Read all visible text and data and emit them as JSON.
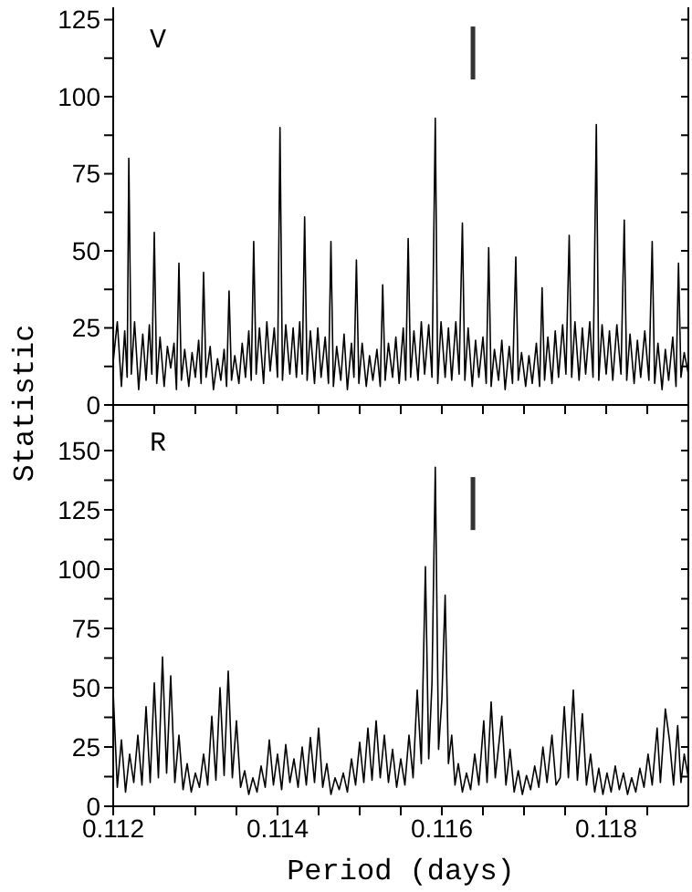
{
  "chart_data": [
    {
      "type": "line",
      "title": "V",
      "ylabel": "Statistic",
      "tick_labels": "y",
      "xlim": [
        0.112,
        0.119
      ],
      "ylim": [
        0,
        129
      ],
      "xticks": [
        0.112,
        {
          "value": 0.1125,
          "label": null
        },
        {
          "value": 0.113,
          "label": null
        },
        {
          "value": 0.1135,
          "label": null
        },
        {
          "value": 0.114,
          "label": null
        },
        {
          "value": 0.1145,
          "label": null
        },
        {
          "value": 0.115,
          "label": null
        },
        {
          "value": 0.1155,
          "label": null
        },
        {
          "value": 0.116,
          "label": null
        },
        {
          "value": 0.1165,
          "label": null
        },
        {
          "value": 0.117,
          "label": null
        },
        {
          "value": 0.1175,
          "label": null
        },
        {
          "value": 0.118,
          "label": null
        },
        {
          "value": 0.1185,
          "label": null
        }
      ],
      "yticks": [
        0,
        {
          "value": 12.5,
          "label": null
        },
        25,
        {
          "value": 37.5,
          "label": null
        },
        50,
        {
          "value": 62.5,
          "label": null
        },
        75,
        {
          "value": 87.5,
          "label": null
        },
        100,
        {
          "value": 112.5,
          "label": null
        },
        125
      ],
      "annotations": [
        "|"
      ],
      "x": [
        0.112,
        0.11205,
        0.1121,
        0.11214,
        0.11217,
        0.11219,
        0.11222,
        0.11226,
        0.11231,
        0.11236,
        0.1124,
        0.11244,
        0.11247,
        0.1125,
        0.11253,
        0.11257,
        0.11262,
        0.11266,
        0.1127,
        0.11274,
        0.11277,
        0.1128,
        0.11283,
        0.11287,
        0.11292,
        0.11296,
        0.113,
        0.11304,
        0.11307,
        0.1131,
        0.11313,
        0.11318,
        0.11322,
        0.11327,
        0.11331,
        0.11335,
        0.11338,
        0.11341,
        0.11344,
        0.11348,
        0.11353,
        0.11357,
        0.11361,
        0.11365,
        0.11368,
        0.11371,
        0.11374,
        0.11378,
        0.11383,
        0.11387,
        0.11391,
        0.11396,
        0.114,
        0.11403,
        0.11406,
        0.1141,
        0.11415,
        0.11419,
        0.11423,
        0.11427,
        0.1143,
        0.11433,
        0.11436,
        0.1144,
        0.11445,
        0.11449,
        0.11453,
        0.11458,
        0.11462,
        0.11465,
        0.11468,
        0.11472,
        0.11477,
        0.11481,
        0.11485,
        0.1149,
        0.11493,
        0.11496,
        0.11499,
        0.11503,
        0.11508,
        0.11512,
        0.11516,
        0.11521,
        0.11525,
        0.11528,
        0.11531,
        0.11535,
        0.1154,
        0.11544,
        0.11548,
        0.11553,
        0.11556,
        0.11559,
        0.11562,
        0.11566,
        0.11571,
        0.11575,
        0.11579,
        0.11584,
        0.11588,
        0.11592,
        0.11595,
        0.11599,
        0.11604,
        0.11608,
        0.11612,
        0.11617,
        0.11621,
        0.11625,
        0.11628,
        0.11632,
        0.11637,
        0.11641,
        0.11645,
        0.1165,
        0.11654,
        0.11657,
        0.1166,
        0.11664,
        0.11669,
        0.11673,
        0.11677,
        0.11682,
        0.11686,
        0.1169,
        0.11693,
        0.11697,
        0.11702,
        0.11706,
        0.1171,
        0.11715,
        0.11719,
        0.11722,
        0.11725,
        0.11729,
        0.11734,
        0.11738,
        0.11742,
        0.11747,
        0.11751,
        0.11755,
        0.11758,
        0.11762,
        0.11767,
        0.11771,
        0.11775,
        0.1178,
        0.11784,
        0.11788,
        0.11791,
        0.11795,
        0.118,
        0.11804,
        0.11808,
        0.11813,
        0.11818,
        0.11822,
        0.11825,
        0.11829,
        0.11834,
        0.11838,
        0.11842,
        0.11847,
        0.11852,
        0.11856,
        0.11859,
        0.11863,
        0.11868,
        0.11872,
        0.11876,
        0.11881,
        0.11885,
        0.11888,
        0.11891,
        0.11895,
        0.119
      ],
      "series": [
        {
          "color": "#000000",
          "values": [
            14,
            27,
            6,
            24,
            9,
            80,
            10,
            27,
            5,
            23,
            8,
            26,
            10,
            56,
            7,
            22,
            6,
            19,
            12,
            20,
            5,
            46,
            8,
            18,
            6,
            17,
            9,
            21,
            7,
            43,
            9,
            19,
            5,
            15,
            8,
            18,
            6,
            37,
            8,
            16,
            7,
            20,
            9,
            24,
            8,
            53,
            10,
            25,
            7,
            27,
            11,
            25,
            9,
            90,
            8,
            26,
            10,
            25,
            9,
            27,
            10,
            61,
            8,
            24,
            7,
            25,
            9,
            22,
            7,
            53,
            6,
            19,
            8,
            23,
            5,
            20,
            9,
            47,
            7,
            20,
            6,
            16,
            8,
            18,
            6,
            39,
            8,
            20,
            9,
            22,
            7,
            25,
            8,
            54,
            9,
            24,
            8,
            27,
            10,
            26,
            9,
            93,
            7,
            27,
            9,
            25,
            8,
            27,
            10,
            59,
            8,
            25,
            6,
            21,
            9,
            22,
            7,
            51,
            6,
            18,
            8,
            21,
            5,
            19,
            7,
            48,
            8,
            17,
            6,
            16,
            7,
            20,
            6,
            38,
            8,
            22,
            7,
            24,
            9,
            26,
            10,
            55,
            9,
            27,
            8,
            25,
            10,
            27,
            9,
            91,
            8,
            26,
            10,
            24,
            8,
            26,
            10,
            60,
            8,
            23,
            7,
            21,
            9,
            24,
            8,
            53,
            7,
            20,
            5,
            18,
            8,
            22,
            6,
            46,
            9,
            17,
            10
          ]
        }
      ]
    },
    {
      "type": "line",
      "title": "R",
      "xlabel": "Period (days)",
      "xlim": [
        0.112,
        0.119
      ],
      "ylim": [
        0,
        170
      ],
      "xticks": [
        0.112,
        {
          "value": 0.1125,
          "label": null
        },
        {
          "value": 0.113,
          "label": null
        },
        {
          "value": 0.1135,
          "label": null
        },
        0.114,
        {
          "value": 0.1145,
          "label": null
        },
        {
          "value": 0.115,
          "label": null
        },
        {
          "value": 0.1155,
          "label": null
        },
        0.116,
        {
          "value": 0.1165,
          "label": null
        },
        {
          "value": 0.117,
          "label": null
        },
        {
          "value": 0.1175,
          "label": null
        },
        0.118,
        {
          "value": 0.1185,
          "label": null
        }
      ],
      "yticks": [
        0,
        {
          "value": 12.5,
          "label": null
        },
        25,
        {
          "value": 37.5,
          "label": null
        },
        50,
        {
          "value": 62.5,
          "label": null
        },
        75,
        {
          "value": 87.5,
          "label": null
        },
        100,
        {
          "value": 112.5,
          "label": null
        },
        125,
        {
          "value": 137.5,
          "label": null
        },
        150,
        {
          "value": 162.5,
          "label": null
        }
      ],
      "annotations": [
        "|"
      ],
      "x": [
        0.112,
        0.11205,
        0.1121,
        0.11215,
        0.1122,
        0.11225,
        0.1123,
        0.11235,
        0.1124,
        0.11245,
        0.1125,
        0.11255,
        0.1126,
        0.11265,
        0.1127,
        0.11275,
        0.1128,
        0.11285,
        0.1129,
        0.11295,
        0.113,
        0.11305,
        0.1131,
        0.11315,
        0.1132,
        0.11325,
        0.1133,
        0.11335,
        0.1134,
        0.11345,
        0.1135,
        0.11355,
        0.1136,
        0.11365,
        0.1137,
        0.11375,
        0.1138,
        0.11385,
        0.1139,
        0.11395,
        0.114,
        0.11405,
        0.1141,
        0.11415,
        0.1142,
        0.11425,
        0.1143,
        0.11435,
        0.1144,
        0.11445,
        0.1145,
        0.11455,
        0.1146,
        0.11465,
        0.1147,
        0.11475,
        0.1148,
        0.11485,
        0.1149,
        0.11495,
        0.115,
        0.11505,
        0.1151,
        0.11515,
        0.1152,
        0.11525,
        0.1153,
        0.11535,
        0.1154,
        0.11545,
        0.1155,
        0.11555,
        0.1156,
        0.11565,
        0.1157,
        0.11575,
        0.1158,
        0.11584,
        0.11588,
        0.11592,
        0.11596,
        0.116,
        0.11604,
        0.11608,
        0.11612,
        0.11616,
        0.1162,
        0.11625,
        0.1163,
        0.11635,
        0.1164,
        0.11645,
        0.11651,
        0.11655,
        0.1166,
        0.11665,
        0.11673,
        0.11678,
        0.11683,
        0.11688,
        0.11693,
        0.11698,
        0.11703,
        0.11708,
        0.11713,
        0.11718,
        0.11723,
        0.11728,
        0.11734,
        0.11739,
        0.11744,
        0.11749,
        0.11754,
        0.1176,
        0.11765,
        0.11771,
        0.11776,
        0.11781,
        0.11786,
        0.11791,
        0.11796,
        0.11801,
        0.11806,
        0.11811,
        0.11816,
        0.11821,
        0.11826,
        0.11831,
        0.11836,
        0.11841,
        0.11846,
        0.11851,
        0.11856,
        0.11862,
        0.11866,
        0.11872,
        0.11877,
        0.11882,
        0.11887,
        0.11891,
        0.11895,
        0.119
      ],
      "series": [
        {
          "color": "#000000",
          "values": [
            48,
            8,
            28,
            6,
            22,
            10,
            30,
            9,
            42,
            10,
            52,
            12,
            63,
            14,
            55,
            10,
            30,
            7,
            18,
            6,
            14,
            8,
            22,
            9,
            38,
            11,
            50,
            13,
            57,
            12,
            36,
            8,
            15,
            5,
            12,
            6,
            17,
            8,
            28,
            9,
            22,
            7,
            26,
            10,
            20,
            8,
            25,
            9,
            29,
            10,
            33,
            8,
            18,
            5,
            12,
            7,
            14,
            6,
            20,
            9,
            27,
            10,
            33,
            11,
            36,
            12,
            30,
            10,
            24,
            8,
            20,
            9,
            30,
            12,
            49,
            18,
            101,
            20,
            52,
            143,
            24,
            45,
            89,
            18,
            30,
            9,
            18,
            6,
            14,
            7,
            22,
            9,
            36,
            10,
            44,
            12,
            38,
            9,
            24,
            6,
            15,
            5,
            13,
            7,
            17,
            8,
            25,
            10,
            30,
            9,
            12,
            42,
            12,
            49,
            11,
            39,
            9,
            22,
            6,
            16,
            5,
            14,
            6,
            17,
            7,
            14,
            5,
            12,
            6,
            16,
            8,
            22,
            9,
            33,
            10,
            41,
            28,
            9,
            34,
            10,
            22,
            12
          ]
        }
      ]
    }
  ]
}
